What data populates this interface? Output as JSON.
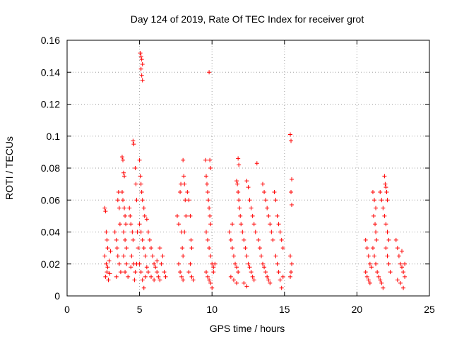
{
  "chart_data": {
    "type": "scatter",
    "title": "Day 124 of 2019, Rate Of TEC Index for receiver grot",
    "xlabel": "GPS time / hours",
    "ylabel": "ROTI / TECUs",
    "xlim": [
      0,
      25
    ],
    "ylim": [
      0,
      0.16
    ],
    "xticks": [
      "0",
      "5",
      "10",
      "15",
      "20",
      "25"
    ],
    "yticks": [
      "0",
      "0.02",
      "0.04",
      "0.06",
      "0.08",
      "0.1",
      "0.12",
      "0.14",
      "0.16"
    ],
    "grid": true,
    "marker": "+",
    "color": "#ff0000",
    "series": [
      {
        "points": [
          [
            2.6,
            0.055
          ],
          [
            2.65,
            0.053
          ],
          [
            2.7,
            0.04
          ],
          [
            2.75,
            0.035
          ],
          [
            2.8,
            0.03
          ],
          [
            2.6,
            0.025
          ],
          [
            2.7,
            0.02
          ],
          [
            2.75,
            0.015
          ],
          [
            2.65,
            0.012
          ],
          [
            2.8,
            0.018
          ],
          [
            2.9,
            0.022
          ],
          [
            3.0,
            0.028
          ],
          [
            2.95,
            0.014
          ],
          [
            2.85,
            0.01
          ],
          [
            3.3,
            0.04
          ],
          [
            3.4,
            0.035
          ],
          [
            3.5,
            0.06
          ],
          [
            3.55,
            0.065
          ],
          [
            3.6,
            0.055
          ],
          [
            3.45,
            0.03
          ],
          [
            3.5,
            0.025
          ],
          [
            3.6,
            0.02
          ],
          [
            3.7,
            0.015
          ],
          [
            3.4,
            0.012
          ],
          [
            3.65,
            0.045
          ],
          [
            3.8,
            0.087
          ],
          [
            3.85,
            0.085
          ],
          [
            3.9,
            0.077
          ],
          [
            3.95,
            0.075
          ],
          [
            3.8,
            0.065
          ],
          [
            3.85,
            0.06
          ],
          [
            3.95,
            0.055
          ],
          [
            4.0,
            0.05
          ],
          [
            4.05,
            0.045
          ],
          [
            3.9,
            0.04
          ],
          [
            4.0,
            0.035
          ],
          [
            4.1,
            0.03
          ],
          [
            3.9,
            0.025
          ],
          [
            4.1,
            0.02
          ],
          [
            4.0,
            0.015
          ],
          [
            4.2,
            0.012
          ],
          [
            4.3,
            0.055
          ],
          [
            4.35,
            0.05
          ],
          [
            4.4,
            0.045
          ],
          [
            4.5,
            0.04
          ],
          [
            4.55,
            0.035
          ],
          [
            4.45,
            0.025
          ],
          [
            4.6,
            0.02
          ],
          [
            4.7,
            0.015
          ],
          [
            4.65,
            0.01
          ],
          [
            4.4,
            0.018
          ],
          [
            4.55,
            0.097
          ],
          [
            4.6,
            0.095
          ],
          [
            4.7,
            0.08
          ],
          [
            4.75,
            0.07
          ],
          [
            4.8,
            0.06
          ],
          [
            4.85,
            0.04
          ],
          [
            4.9,
            0.03
          ],
          [
            4.8,
            0.02
          ],
          [
            5.05,
            0.152
          ],
          [
            5.1,
            0.15
          ],
          [
            5.15,
            0.148
          ],
          [
            5.2,
            0.145
          ],
          [
            5.1,
            0.142
          ],
          [
            5.15,
            0.138
          ],
          [
            5.2,
            0.135
          ],
          [
            5.0,
            0.085
          ],
          [
            5.05,
            0.075
          ],
          [
            5.1,
            0.07
          ],
          [
            5.15,
            0.065
          ],
          [
            5.2,
            0.06
          ],
          [
            5.3,
            0.055
          ],
          [
            5.35,
            0.05
          ],
          [
            5.0,
            0.045
          ],
          [
            5.1,
            0.04
          ],
          [
            5.2,
            0.035
          ],
          [
            5.3,
            0.03
          ],
          [
            5.4,
            0.025
          ],
          [
            5.0,
            0.02
          ],
          [
            5.1,
            0.015
          ],
          [
            5.2,
            0.01
          ],
          [
            5.3,
            0.005
          ],
          [
            5.4,
            0.012
          ],
          [
            5.5,
            0.018
          ],
          [
            5.5,
            0.048
          ],
          [
            5.6,
            0.04
          ],
          [
            5.7,
            0.035
          ],
          [
            5.8,
            0.03
          ],
          [
            5.9,
            0.025
          ],
          [
            6.0,
            0.02
          ],
          [
            6.1,
            0.018
          ],
          [
            6.2,
            0.015
          ],
          [
            6.3,
            0.012
          ],
          [
            6.4,
            0.01
          ],
          [
            6.5,
            0.02
          ],
          [
            6.6,
            0.025
          ],
          [
            6.7,
            0.015
          ],
          [
            6.8,
            0.012
          ],
          [
            5.6,
            0.015
          ],
          [
            5.8,
            0.012
          ],
          [
            6.0,
            0.01
          ],
          [
            6.2,
            0.022
          ],
          [
            6.4,
            0.03
          ],
          [
            7.6,
            0.05
          ],
          [
            7.7,
            0.045
          ],
          [
            7.8,
            0.065
          ],
          [
            7.85,
            0.07
          ],
          [
            7.9,
            0.04
          ],
          [
            7.95,
            0.03
          ],
          [
            8.0,
            0.025
          ],
          [
            7.7,
            0.02
          ],
          [
            7.8,
            0.015
          ],
          [
            7.9,
            0.012
          ],
          [
            8.0,
            0.01
          ],
          [
            8.0,
            0.085
          ],
          [
            8.05,
            0.075
          ],
          [
            8.1,
            0.07
          ],
          [
            8.15,
            0.06
          ],
          [
            8.2,
            0.05
          ],
          [
            8.1,
            0.04
          ],
          [
            8.3,
            0.065
          ],
          [
            8.4,
            0.06
          ],
          [
            8.5,
            0.05
          ],
          [
            8.55,
            0.035
          ],
          [
            8.6,
            0.03
          ],
          [
            8.5,
            0.02
          ],
          [
            8.4,
            0.015
          ],
          [
            8.6,
            0.012
          ],
          [
            8.7,
            0.01
          ],
          [
            9.55,
            0.085
          ],
          [
            9.6,
            0.075
          ],
          [
            9.65,
            0.07
          ],
          [
            9.7,
            0.065
          ],
          [
            9.75,
            0.06
          ],
          [
            9.8,
            0.055
          ],
          [
            9.85,
            0.05
          ],
          [
            9.9,
            0.045
          ],
          [
            9.85,
            0.085
          ],
          [
            9.9,
            0.08
          ],
          [
            9.8,
            0.14
          ],
          [
            9.6,
            0.04
          ],
          [
            9.7,
            0.035
          ],
          [
            9.8,
            0.03
          ],
          [
            9.9,
            0.025
          ],
          [
            10.0,
            0.02
          ],
          [
            10.1,
            0.018
          ],
          [
            9.6,
            0.015
          ],
          [
            9.7,
            0.012
          ],
          [
            9.8,
            0.01
          ],
          [
            9.9,
            0.008
          ],
          [
            10.0,
            0.005
          ],
          [
            10.1,
            0.015
          ],
          [
            10.2,
            0.02
          ],
          [
            11.2,
            0.04
          ],
          [
            11.3,
            0.035
          ],
          [
            11.4,
            0.03
          ],
          [
            11.5,
            0.025
          ],
          [
            11.6,
            0.02
          ],
          [
            11.7,
            0.018
          ],
          [
            11.8,
            0.015
          ],
          [
            11.3,
            0.012
          ],
          [
            11.5,
            0.01
          ],
          [
            11.7,
            0.008
          ],
          [
            11.4,
            0.045
          ],
          [
            11.7,
            0.072
          ],
          [
            11.75,
            0.07
          ],
          [
            11.8,
            0.065
          ],
          [
            11.85,
            0.06
          ],
          [
            11.9,
            0.055
          ],
          [
            11.95,
            0.05
          ],
          [
            12.0,
            0.045
          ],
          [
            11.8,
            0.086
          ],
          [
            11.85,
            0.082
          ],
          [
            12.1,
            0.04
          ],
          [
            12.2,
            0.035
          ],
          [
            12.3,
            0.03
          ],
          [
            12.4,
            0.025
          ],
          [
            12.5,
            0.02
          ],
          [
            12.6,
            0.018
          ],
          [
            12.7,
            0.015
          ],
          [
            12.8,
            0.012
          ],
          [
            12.9,
            0.01
          ],
          [
            12.2,
            0.008
          ],
          [
            12.4,
            0.006
          ],
          [
            12.4,
            0.072
          ],
          [
            12.5,
            0.068
          ],
          [
            12.6,
            0.06
          ],
          [
            12.7,
            0.055
          ],
          [
            12.8,
            0.05
          ],
          [
            12.9,
            0.045
          ],
          [
            13.0,
            0.04
          ],
          [
            13.1,
            0.083
          ],
          [
            13.2,
            0.035
          ],
          [
            13.3,
            0.03
          ],
          [
            13.4,
            0.025
          ],
          [
            13.5,
            0.02
          ],
          [
            13.6,
            0.018
          ],
          [
            13.7,
            0.015
          ],
          [
            13.8,
            0.012
          ],
          [
            13.9,
            0.01
          ],
          [
            14.0,
            0.008
          ],
          [
            13.5,
            0.07
          ],
          [
            13.6,
            0.065
          ],
          [
            13.7,
            0.06
          ],
          [
            13.8,
            0.055
          ],
          [
            13.9,
            0.05
          ],
          [
            14.0,
            0.045
          ],
          [
            14.1,
            0.04
          ],
          [
            14.2,
            0.035
          ],
          [
            14.3,
            0.065
          ],
          [
            14.4,
            0.06
          ],
          [
            14.5,
            0.05
          ],
          [
            14.6,
            0.045
          ],
          [
            14.7,
            0.04
          ],
          [
            14.8,
            0.035
          ],
          [
            14.9,
            0.03
          ],
          [
            14.4,
            0.025
          ],
          [
            14.5,
            0.02
          ],
          [
            14.6,
            0.015
          ],
          [
            14.7,
            0.01
          ],
          [
            14.8,
            0.005
          ],
          [
            14.9,
            0.012
          ],
          [
            15.4,
            0.101
          ],
          [
            15.45,
            0.097
          ],
          [
            15.5,
            0.073
          ],
          [
            15.45,
            0.065
          ],
          [
            15.5,
            0.057
          ],
          [
            15.4,
            0.025
          ],
          [
            15.5,
            0.02
          ],
          [
            15.45,
            0.015
          ],
          [
            15.4,
            0.012
          ],
          [
            20.6,
            0.035
          ],
          [
            20.7,
            0.03
          ],
          [
            20.8,
            0.025
          ],
          [
            20.9,
            0.02
          ],
          [
            21.0,
            0.018
          ],
          [
            20.6,
            0.015
          ],
          [
            20.7,
            0.012
          ],
          [
            20.8,
            0.01
          ],
          [
            20.9,
            0.008
          ],
          [
            21.1,
            0.065
          ],
          [
            21.2,
            0.06
          ],
          [
            21.3,
            0.055
          ],
          [
            21.15,
            0.05
          ],
          [
            21.25,
            0.045
          ],
          [
            21.3,
            0.04
          ],
          [
            21.35,
            0.035
          ],
          [
            21.1,
            0.03
          ],
          [
            21.2,
            0.025
          ],
          [
            21.3,
            0.02
          ],
          [
            21.4,
            0.015
          ],
          [
            21.5,
            0.012
          ],
          [
            21.6,
            0.01
          ],
          [
            21.7,
            0.008
          ],
          [
            21.8,
            0.005
          ],
          [
            21.6,
            0.065
          ],
          [
            21.7,
            0.06
          ],
          [
            21.8,
            0.055
          ],
          [
            21.9,
            0.075
          ],
          [
            21.95,
            0.07
          ],
          [
            22.0,
            0.068
          ],
          [
            22.05,
            0.065
          ],
          [
            22.1,
            0.06
          ],
          [
            21.9,
            0.05
          ],
          [
            22.0,
            0.045
          ],
          [
            22.1,
            0.04
          ],
          [
            22.2,
            0.035
          ],
          [
            22.0,
            0.03
          ],
          [
            22.1,
            0.025
          ],
          [
            22.2,
            0.02
          ],
          [
            22.3,
            0.015
          ],
          [
            22.7,
            0.035
          ],
          [
            22.8,
            0.03
          ],
          [
            22.9,
            0.025
          ],
          [
            23.0,
            0.02
          ],
          [
            23.1,
            0.018
          ],
          [
            23.2,
            0.015
          ],
          [
            23.3,
            0.012
          ],
          [
            22.8,
            0.01
          ],
          [
            23.0,
            0.008
          ],
          [
            23.2,
            0.005
          ],
          [
            23.3,
            0.02
          ],
          [
            23.1,
            0.028
          ]
        ]
      }
    ]
  }
}
